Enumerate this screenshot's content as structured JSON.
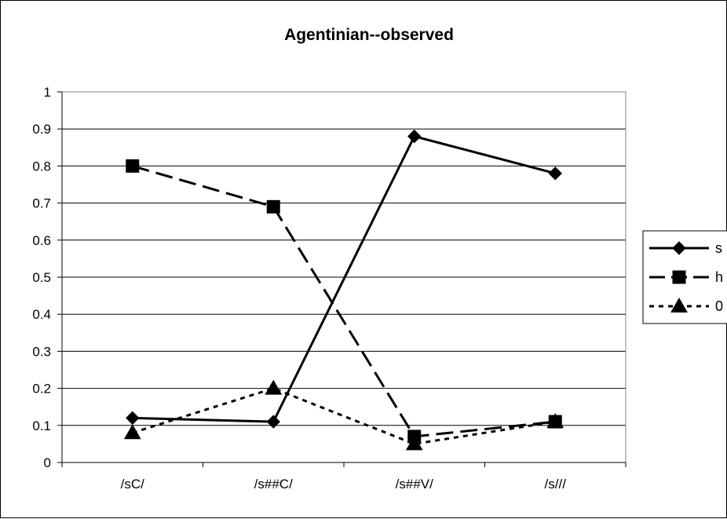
{
  "chart_data": {
    "type": "line",
    "title": "Agentinian--observed",
    "xlabel": "",
    "ylabel": "",
    "categories": [
      "/sC/",
      "/s##C/",
      "/s##V/",
      "/s///"
    ],
    "ylim": [
      0,
      1
    ],
    "yticks": [
      "0",
      "0.1",
      "0.2",
      "0.3",
      "0.4",
      "0.5",
      "0.6",
      "0.7",
      "0.8",
      "0.9",
      "1"
    ],
    "grid": true,
    "legend_position": "right",
    "series": [
      {
        "name": "s",
        "values": [
          0.12,
          0.11,
          0.88,
          0.78
        ],
        "marker": "diamond",
        "dash": "solid",
        "color": "#000000"
      },
      {
        "name": "h",
        "values": [
          0.8,
          0.69,
          0.07,
          0.11
        ],
        "marker": "square",
        "dash": "dashed",
        "color": "#000000"
      },
      {
        "name": "0",
        "values": [
          0.08,
          0.2,
          0.05,
          0.11
        ],
        "marker": "triangle",
        "dash": "dotted",
        "color": "#000000"
      }
    ]
  }
}
